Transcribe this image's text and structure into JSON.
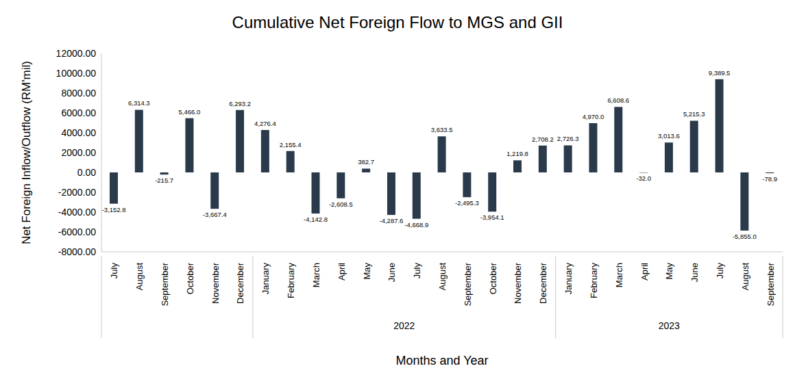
{
  "chart_data": {
    "type": "bar",
    "title": "Cumulative Net Foreign Flow to MGS and GII",
    "x_label": "Months and Year",
    "y_label": "Net Foreign Inflow/Outflow (RM'mil)",
    "categories": [
      "July",
      "August",
      "September",
      "October",
      "November",
      "December",
      "January",
      "February",
      "March",
      "April",
      "May",
      "June",
      "July",
      "August",
      "September",
      "October",
      "November",
      "December",
      "January",
      "February",
      "March",
      "April",
      "May",
      "June",
      "July",
      "August",
      "September"
    ],
    "category_groups": [
      {
        "label": null,
        "count": 6
      },
      {
        "label": "2022",
        "count": 12
      },
      {
        "label": "2023",
        "count": 9
      }
    ],
    "values": [
      -3152.8,
      6314.3,
      -215.7,
      5466.0,
      -3667.4,
      6293.2,
      4276.4,
      2155.4,
      -4142.8,
      -2608.5,
      382.7,
      -4287.6,
      -4668.9,
      3633.5,
      -2495.3,
      -3954.1,
      1219.8,
      2708.2,
      2726.3,
      4970.0,
      6608.6,
      -32.0,
      3013.6,
      5215.3,
      9389.5,
      -5855.0,
      -78.9
    ],
    "value_labels": [
      "-3,152.8",
      "6,314.3",
      "-215.7",
      "5,466.0",
      "-3,667.4",
      "6,293.2",
      "4,276.4",
      "2,155.4",
      "-4,142.8",
      "-2,608.5",
      "382.7",
      "-4,287.6",
      "-4,668.9",
      "3,633.5",
      "-2,495.3",
      "-3,954.1",
      "1,219.8",
      "2,708.2",
      "2,726.3",
      "4,970.0",
      "6,608.6",
      "-32.0",
      "3,013.6",
      "5,215.3",
      "9,389.5",
      "-5,855.0",
      "-78.9"
    ],
    "color": "#2a3a4b",
    "ylim": [
      -8000,
      12000
    ],
    "yticks": [
      {
        "value": -8000,
        "label": "-8000.00"
      },
      {
        "value": -6000,
        "label": "-6000.00"
      },
      {
        "value": -4000,
        "label": "-4000.00"
      },
      {
        "value": -2000,
        "label": "-2000.00"
      },
      {
        "value": 0,
        "label": "0.00"
      },
      {
        "value": 2000,
        "label": "2000.00"
      },
      {
        "value": 4000,
        "label": "4000.00"
      },
      {
        "value": 6000,
        "label": "6000.00"
      },
      {
        "value": 8000,
        "label": "8000.00"
      },
      {
        "value": 10000,
        "label": "10000.00"
      },
      {
        "value": 12000,
        "label": "12000.00"
      }
    ],
    "grid": false,
    "data_labels": true
  }
}
